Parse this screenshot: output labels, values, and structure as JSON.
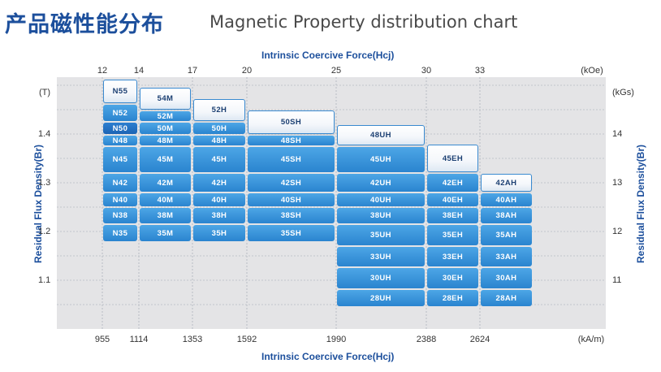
{
  "title_cn": "产品磁性能分布",
  "title_en": "Magnetic Property distribution chart",
  "chart_data": {
    "type": "table",
    "x_title": "Intrinsic Coercive Force(Hcj)",
    "y_title": "Residual Flux Density(Br)",
    "top_unit": "(kOe)",
    "bottom_unit": "(kA/m)",
    "left_unit": "(T)",
    "right_unit": "(kGs)",
    "x_top_ticks": [
      "12",
      "14",
      "17",
      "20",
      "25",
      "30",
      "33"
    ],
    "x_bottom_ticks": [
      "955",
      "1114",
      "1353",
      "1592",
      "1990",
      "2388",
      "2624"
    ],
    "y_left_ticks": [
      "1.4",
      "1.3",
      "1.2",
      "1.1"
    ],
    "y_right_ticks": [
      "14",
      "13",
      "12",
      "11"
    ],
    "y_tick_values": [
      1.4,
      1.3,
      1.2,
      1.1
    ],
    "columns": [
      {
        "hcj_kOe": 12,
        "grades": [
          "N55",
          "N52",
          "N50",
          "N48",
          "N45",
          "N42",
          "N40",
          "N38",
          "N35"
        ]
      },
      {
        "hcj_kOe": 14,
        "grades": [
          "54M",
          "52M",
          "50M",
          "48M",
          "45M",
          "42M",
          "40M",
          "38M",
          "35M"
        ]
      },
      {
        "hcj_kOe": 17,
        "grades": [
          "52H",
          "50H",
          "48H",
          "45H",
          "42H",
          "40H",
          "38H",
          "35H"
        ]
      },
      {
        "hcj_kOe": 20,
        "grades": [
          "50SH",
          "48SH",
          "45SH",
          "42SH",
          "40SH",
          "38SH",
          "35SH"
        ]
      },
      {
        "hcj_kOe": 25,
        "grades": [
          "48UH",
          "45UH",
          "42UH",
          "40UH",
          "38UH",
          "35UH",
          "33UH",
          "30UH",
          "28UH"
        ]
      },
      {
        "hcj_kOe": 30,
        "grades": [
          "45EH",
          "42EH",
          "40EH",
          "38EH",
          "35EH",
          "33EH",
          "30EH",
          "28EH"
        ]
      },
      {
        "hcj_kOe": 33,
        "grades": [
          "42AH",
          "40AH",
          "38AH",
          "35AH",
          "33AH",
          "30AH",
          "28AH"
        ]
      }
    ],
    "grid": true
  }
}
